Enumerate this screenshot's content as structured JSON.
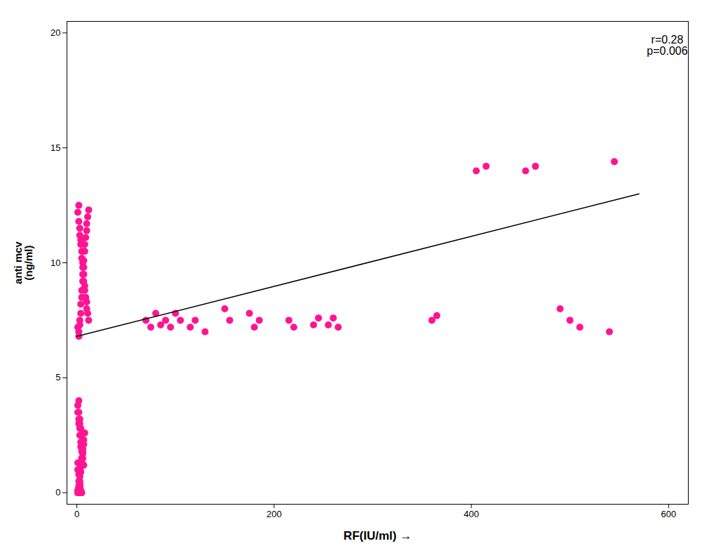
{
  "chart_data": {
    "type": "scatter",
    "xlabel": "RF(IU/ml)",
    "ylabel": "anti mcv\n(ng/ml)",
    "xlim": [
      -10,
      620
    ],
    "ylim": [
      -0.5,
      20.5
    ],
    "xticks": [
      0,
      200,
      400,
      600
    ],
    "yticks": [
      0,
      5,
      10,
      15,
      20
    ],
    "annotation": "r=0.28\np=0.006",
    "series": [
      {
        "type": "scatter",
        "color": "#FF1493",
        "x": [
          1,
          2,
          2,
          3,
          3,
          4,
          4,
          5,
          5,
          6,
          6,
          7,
          7,
          8,
          8,
          9,
          10,
          10,
          11,
          12,
          1,
          2,
          2,
          3,
          3,
          4,
          4,
          5,
          5,
          6,
          6,
          7,
          7,
          8,
          8,
          9,
          10,
          10,
          11,
          12,
          1,
          2,
          2,
          3,
          3,
          4,
          4,
          5,
          5,
          1,
          1,
          2,
          2,
          3,
          3,
          4,
          4,
          5,
          1,
          1,
          2,
          2,
          3,
          3,
          4,
          4,
          5,
          5,
          6,
          6,
          7,
          7,
          8,
          1,
          2,
          2,
          3,
          3,
          4,
          4,
          5,
          5,
          6,
          6,
          7,
          1,
          1,
          2,
          2,
          3,
          3,
          70,
          75,
          80,
          85,
          90,
          95,
          100,
          105,
          115,
          120,
          130,
          150,
          155,
          175,
          180,
          185,
          215,
          220,
          240,
          245,
          255,
          260,
          265,
          360,
          365,
          405,
          415,
          455,
          465,
          490,
          500,
          510,
          540,
          545
        ],
        "values": [
          12.2,
          12.5,
          11.8,
          11.5,
          11.2,
          11.0,
          10.8,
          10.5,
          10.2,
          10.0,
          9.8,
          9.5,
          9.2,
          9.0,
          8.8,
          8.5,
          8.3,
          8.0,
          7.8,
          7.5,
          7.2,
          7.0,
          6.8,
          7.3,
          7.5,
          7.8,
          8.2,
          8.5,
          8.8,
          9.2,
          9.5,
          9.8,
          10.1,
          10.5,
          10.8,
          11.1,
          11.4,
          11.7,
          12.0,
          12.3,
          3.5,
          3.2,
          3.0,
          2.8,
          2.5,
          2.2,
          2.0,
          1.8,
          1.5,
          1.3,
          1.0,
          0.8,
          0.5,
          0.3,
          0.2,
          0.1,
          0.0,
          0.0,
          0.0,
          0.1,
          0.2,
          0.3,
          0.5,
          0.7,
          0.9,
          1.1,
          1.3,
          1.5,
          1.7,
          1.9,
          2.1,
          2.3,
          2.6,
          3.8,
          4.0,
          3.5,
          3.2,
          3.0,
          2.8,
          2.5,
          2.2,
          2.0,
          1.8,
          1.5,
          1.2,
          0.0,
          0.0,
          0.1,
          0.2,
          0.3,
          0.4,
          7.5,
          7.2,
          7.8,
          7.3,
          7.5,
          7.2,
          7.8,
          7.5,
          7.2,
          7.5,
          7.0,
          8.0,
          7.5,
          7.8,
          7.2,
          7.5,
          7.5,
          7.2,
          7.3,
          7.6,
          7.3,
          7.6,
          7.2,
          7.5,
          7.7,
          14.0,
          14.2,
          14.0,
          14.2,
          8.0,
          7.5,
          7.2,
          7.0,
          14.4
        ]
      },
      {
        "type": "line",
        "color": "#000000",
        "x": [
          0,
          570
        ],
        "values": [
          6.8,
          13.0
        ]
      }
    ]
  }
}
